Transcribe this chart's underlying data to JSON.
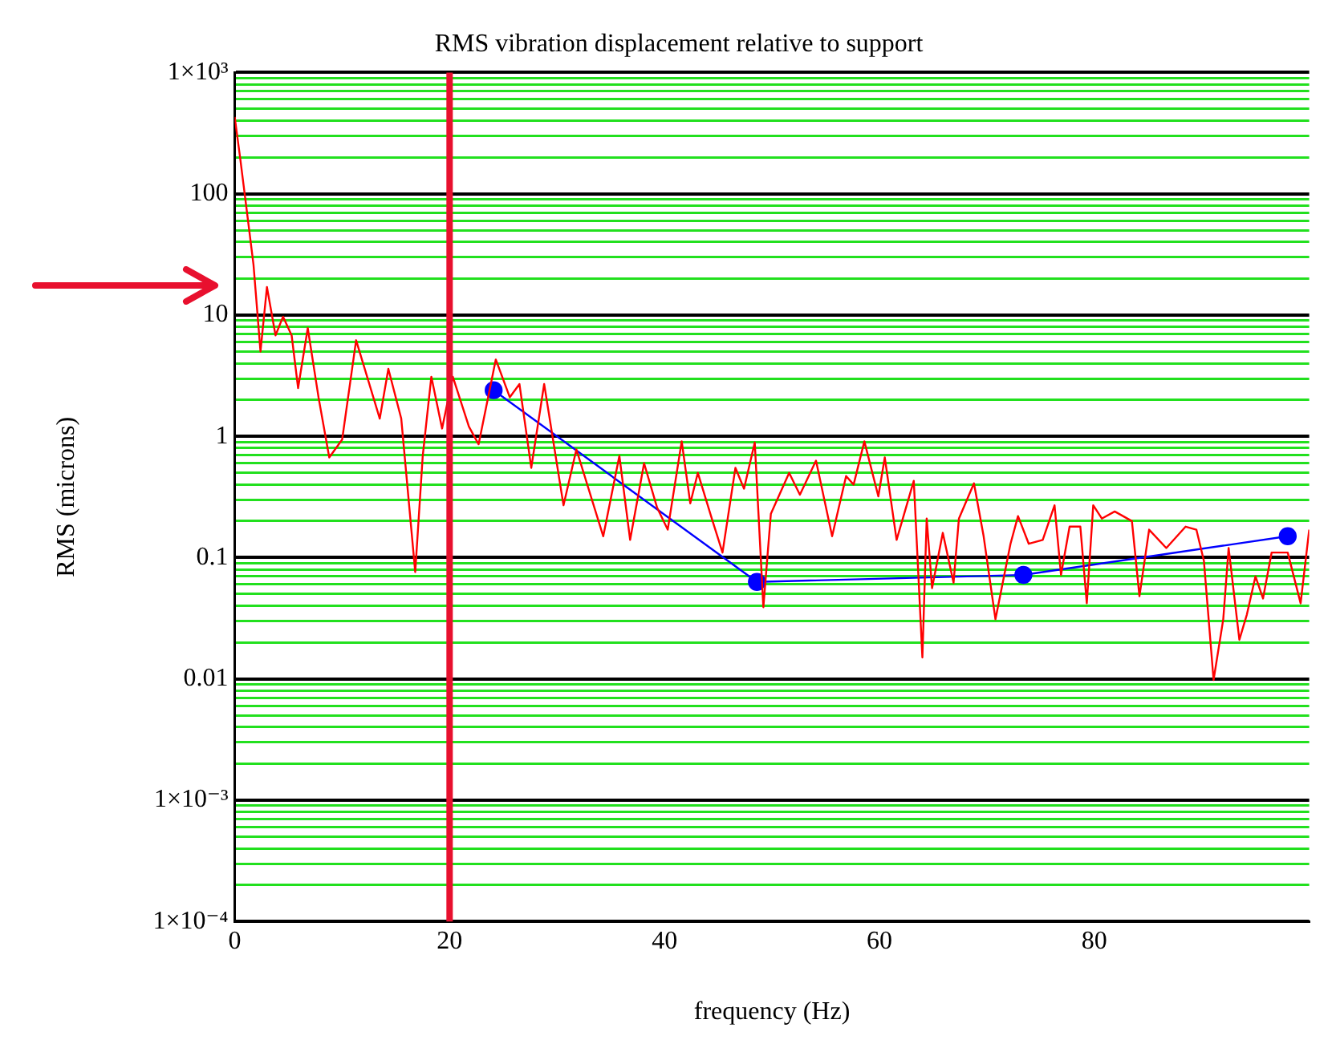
{
  "chart_data": {
    "type": "line",
    "title": "RMS vibration displacement relative to support",
    "xlabel": "frequency (Hz)",
    "ylabel": "RMS (microns)",
    "log": "y",
    "grid": "y",
    "legend": false,
    "line_style": "solid",
    "xlim": [
      0,
      100
    ],
    "xticks": [
      0,
      20,
      40,
      60,
      80
    ],
    "ylim": [
      0.0001,
      1000
    ],
    "yticks": [
      {
        "value": 0.0001,
        "label": "1×10⁻⁴"
      },
      {
        "value": 0.0002,
        "label": null
      },
      {
        "value": 0.0003,
        "label": null
      },
      {
        "value": 0.0004,
        "label": null
      },
      {
        "value": 0.0005,
        "label": null
      },
      {
        "value": 0.0006,
        "label": null
      },
      {
        "value": 0.0007,
        "label": null
      },
      {
        "value": 0.0008,
        "label": null
      },
      {
        "value": 0.0009,
        "label": null
      },
      {
        "value": 0.001,
        "label": "1×10⁻³"
      },
      {
        "value": 0.002,
        "label": null
      },
      {
        "value": 0.003,
        "label": null
      },
      {
        "value": 0.004,
        "label": null
      },
      {
        "value": 0.005,
        "label": null
      },
      {
        "value": 0.006,
        "label": null
      },
      {
        "value": 0.007,
        "label": null
      },
      {
        "value": 0.008,
        "label": null
      },
      {
        "value": 0.009,
        "label": null
      },
      {
        "value": 0.01,
        "label": "0.01"
      },
      {
        "value": 0.02,
        "label": null
      },
      {
        "value": 0.03,
        "label": null
      },
      {
        "value": 0.04,
        "label": null
      },
      {
        "value": 0.05,
        "label": null
      },
      {
        "value": 0.06,
        "label": null
      },
      {
        "value": 0.07,
        "label": null
      },
      {
        "value": 0.08,
        "label": null
      },
      {
        "value": 0.09,
        "label": null
      },
      {
        "value": 0.1,
        "label": "0.1"
      },
      {
        "value": 0.2,
        "label": null
      },
      {
        "value": 0.3,
        "label": null
      },
      {
        "value": 0.4,
        "label": null
      },
      {
        "value": 0.5,
        "label": null
      },
      {
        "value": 0.6,
        "label": null
      },
      {
        "value": 0.7,
        "label": null
      },
      {
        "value": 0.8,
        "label": null
      },
      {
        "value": 0.9,
        "label": null
      },
      {
        "value": 1,
        "label": "1"
      },
      {
        "value": 2,
        "label": null
      },
      {
        "value": 3,
        "label": null
      },
      {
        "value": 4,
        "label": null
      },
      {
        "value": 5,
        "label": null
      },
      {
        "value": 6,
        "label": null
      },
      {
        "value": 7,
        "label": null
      },
      {
        "value": 8,
        "label": null
      },
      {
        "value": 9,
        "label": null
      },
      {
        "value": 10,
        "label": "10"
      },
      {
        "value": 20,
        "label": null
      },
      {
        "value": 30,
        "label": null
      },
      {
        "value": 40,
        "label": null
      },
      {
        "value": 50,
        "label": null
      },
      {
        "value": 60,
        "label": null
      },
      {
        "value": 70,
        "label": null
      },
      {
        "value": 80,
        "label": null
      },
      {
        "value": 90,
        "label": null
      },
      {
        "value": 100,
        "label": "100"
      },
      {
        "value": 200,
        "label": null
      },
      {
        "value": 300,
        "label": null
      },
      {
        "value": 400,
        "label": null
      },
      {
        "value": 500,
        "label": null
      },
      {
        "value": 600,
        "label": null
      },
      {
        "value": 700,
        "label": null
      },
      {
        "value": 800,
        "label": null
      },
      {
        "value": 900,
        "label": null
      },
      {
        "value": 1000,
        "label": "1×10³"
      }
    ],
    "ref_lines": [
      {
        "axis": "x",
        "value": 20,
        "color": "#e8102e"
      }
    ],
    "series": [
      {
        "color": "#ff0000",
        "marker": "none",
        "x": [
          0,
          0.5,
          1.0,
          1.75,
          2.4,
          3.0,
          3.8,
          4.5,
          5.3,
          5.9,
          6.8,
          7.8,
          8.8,
          10,
          11.3,
          13.5,
          14.3,
          15.5,
          16.8,
          17.5,
          18.3,
          19.3,
          20.3,
          21.8,
          22.7,
          24.3,
          25.6,
          26.5,
          27.6,
          28.8,
          30.6,
          31.8,
          34.3,
          35.8,
          36.8,
          38.1,
          39.3,
          40.3,
          41.6,
          42.4,
          43.1,
          44.4,
          45.4,
          46.6,
          47.4,
          48.4,
          49.2,
          49.9,
          51.6,
          52.6,
          54.1,
          55.6,
          56.9,
          57.6,
          58.6,
          59.9,
          60.5,
          61.6,
          63.2,
          64.0,
          64.4,
          64.9,
          65.9,
          66.9,
          67.4,
          68.8,
          69.7,
          70.8,
          72.2,
          72.9,
          73.9,
          75.2,
          76.3,
          76.9,
          77.7,
          78.7,
          79.3,
          79.9,
          80.7,
          81.9,
          83.5,
          84.2,
          85.1,
          86.7,
          88.5,
          89.5,
          90.2,
          91.1,
          92.0,
          92.5,
          93.5,
          94.2,
          95.0,
          95.7,
          96.5,
          98.0,
          99.2,
          100
        ],
        "values": [
          430,
          200,
          89,
          26,
          5.0,
          17,
          6.8,
          9.7,
          6.8,
          2.5,
          7.8,
          2.1,
          0.67,
          0.94,
          6.2,
          1.4,
          3.6,
          1.4,
          0.076,
          0.69,
          3.1,
          1.16,
          3.1,
          1.2,
          0.86,
          4.3,
          2.1,
          2.7,
          0.55,
          2.7,
          0.27,
          0.78,
          0.15,
          0.69,
          0.14,
          0.6,
          0.26,
          0.17,
          0.91,
          0.28,
          0.5,
          0.21,
          0.11,
          0.55,
          0.37,
          0.89,
          0.039,
          0.23,
          0.5,
          0.33,
          0.63,
          0.15,
          0.47,
          0.4,
          0.91,
          0.32,
          0.67,
          0.14,
          0.43,
          0.015,
          0.21,
          0.056,
          0.16,
          0.062,
          0.21,
          0.41,
          0.15,
          0.031,
          0.13,
          0.22,
          0.13,
          0.14,
          0.27,
          0.072,
          0.18,
          0.18,
          0.042,
          0.27,
          0.21,
          0.24,
          0.2,
          0.048,
          0.17,
          0.12,
          0.18,
          0.17,
          0.094,
          0.0098,
          0.031,
          0.12,
          0.021,
          0.034,
          0.07,
          0.046,
          0.11,
          0.11,
          0.042,
          0.17
        ]
      },
      {
        "color": "#0000ff",
        "marker": "circle",
        "x": [
          24.1,
          48.6,
          73.4,
          98.0
        ],
        "values": [
          2.4,
          0.063,
          0.072,
          0.15
        ]
      }
    ]
  }
}
